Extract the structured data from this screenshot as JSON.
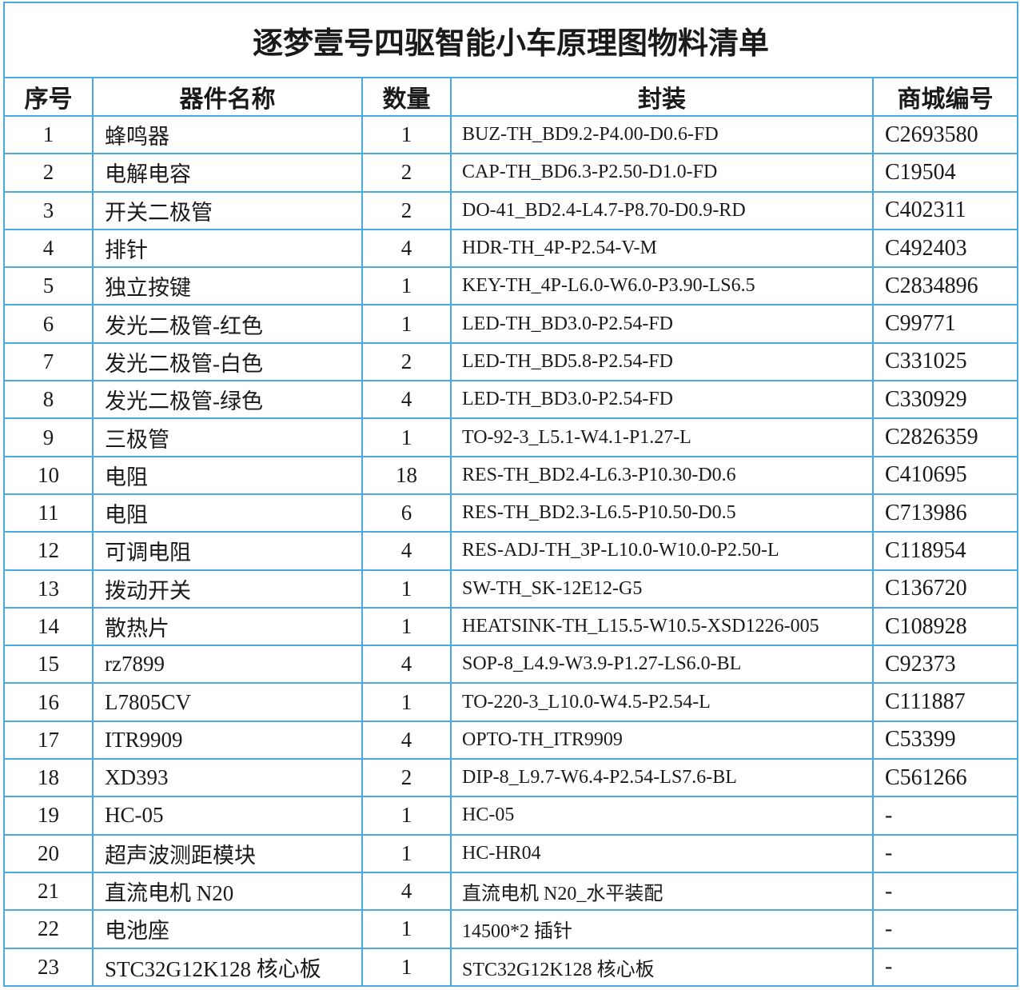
{
  "title": "逐梦壹号四驱智能小车原理图物料清单",
  "headers": [
    "序号",
    "器件名称",
    "数量",
    "封装",
    "商城编号"
  ],
  "rows": [
    [
      "1",
      "蜂鸣器",
      "1",
      "BUZ-TH_BD9.2-P4.00-D0.6-FD",
      "C2693580"
    ],
    [
      "2",
      "电解电容",
      "2",
      "CAP-TH_BD6.3-P2.50-D1.0-FD",
      "C19504"
    ],
    [
      "3",
      "开关二极管",
      "2",
      "DO-41_BD2.4-L4.7-P8.70-D0.9-RD",
      "C402311"
    ],
    [
      "4",
      "排针",
      "4",
      "HDR-TH_4P-P2.54-V-M",
      "C492403"
    ],
    [
      "5",
      "独立按键",
      "1",
      "KEY-TH_4P-L6.0-W6.0-P3.90-LS6.5",
      "C2834896"
    ],
    [
      "6",
      "发光二极管-红色",
      "1",
      "LED-TH_BD3.0-P2.54-FD",
      "C99771"
    ],
    [
      "7",
      "发光二极管-白色",
      "2",
      "LED-TH_BD5.8-P2.54-FD",
      "C331025"
    ],
    [
      "8",
      "发光二极管-绿色",
      "4",
      "LED-TH_BD3.0-P2.54-FD",
      "C330929"
    ],
    [
      "9",
      "三极管",
      "1",
      "TO-92-3_L5.1-W4.1-P1.27-L",
      "C2826359"
    ],
    [
      "10",
      "电阻",
      "18",
      "RES-TH_BD2.4-L6.3-P10.30-D0.6",
      "C410695"
    ],
    [
      "11",
      "电阻",
      "6",
      "RES-TH_BD2.3-L6.5-P10.50-D0.5",
      "C713986"
    ],
    [
      "12",
      "可调电阻",
      "4",
      "RES-ADJ-TH_3P-L10.0-W10.0-P2.50-L",
      "C118954"
    ],
    [
      "13",
      "拨动开关",
      "1",
      "SW-TH_SK-12E12-G5",
      "C136720"
    ],
    [
      "14",
      "散热片",
      "1",
      "HEATSINK-TH_L15.5-W10.5-XSD1226-005",
      "C108928"
    ],
    [
      "15",
      "rz7899",
      "4",
      "SOP-8_L4.9-W3.9-P1.27-LS6.0-BL",
      "C92373"
    ],
    [
      "16",
      "L7805CV",
      "1",
      "TO-220-3_L10.0-W4.5-P2.54-L",
      "C111887"
    ],
    [
      "17",
      "ITR9909",
      "4",
      "OPTO-TH_ITR9909",
      "C53399"
    ],
    [
      "18",
      "XD393",
      "2",
      "DIP-8_L9.7-W6.4-P2.54-LS7.6-BL",
      "C561266"
    ],
    [
      "19",
      "HC-05",
      "1",
      "HC-05",
      "-"
    ],
    [
      "20",
      "超声波测距模块",
      "1",
      "HC-HR04",
      "-"
    ],
    [
      "21",
      "直流电机 N20",
      "4",
      "直流电机 N20_水平装配",
      "-"
    ],
    [
      "22",
      "电池座",
      "1",
      "14500*2  插针",
      "-"
    ],
    [
      "23",
      "STC32G12K128 核心板",
      "1",
      "STC32G12K128 核心板",
      "-"
    ]
  ],
  "colors": {
    "border": "#4ba9e2"
  }
}
